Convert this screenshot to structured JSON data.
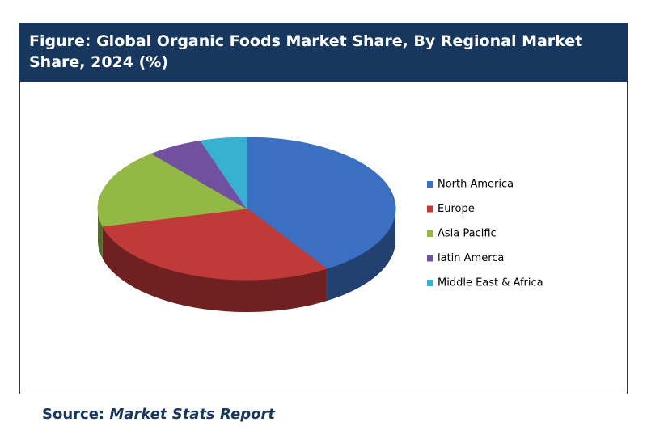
{
  "chart_data": {
    "type": "pie",
    "title": "Figure: Global Organic Foods Market Share, By Regional Market Share, 2024 (%)",
    "categories": [
      "North America",
      "Europe",
      "Asia Pacific",
      "latin Amerca",
      "Middle East & Africa"
    ],
    "values": [
      41,
      30,
      18,
      6,
      5
    ],
    "colors": [
      "#3b6fc2",
      "#c03a3a",
      "#93b944",
      "#7150a0",
      "#38b0cf"
    ],
    "legend": "right"
  },
  "source_label": "Source:",
  "source": "Market Stats Report"
}
